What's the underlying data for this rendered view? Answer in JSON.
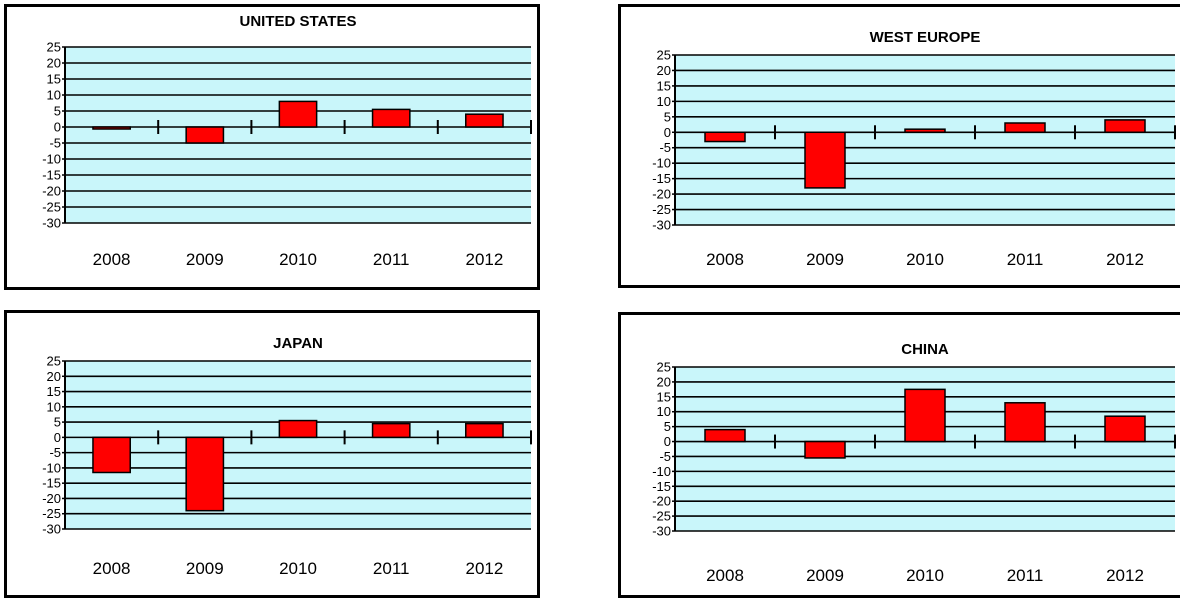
{
  "chart_data": [
    {
      "type": "bar",
      "title": "UNITED STATES",
      "categories": [
        "2008",
        "2009",
        "2010",
        "2011",
        "2012"
      ],
      "values": [
        -0.3,
        -5,
        8,
        5.5,
        4
      ],
      "ylim": [
        -30,
        25
      ],
      "yticks": [
        "25",
        "20",
        "15",
        "10",
        "5",
        "0",
        "-5",
        "-10",
        "-15",
        "-20",
        "-25",
        "-30"
      ],
      "grid": true,
      "colors": {
        "plot_bg": "#c9f6fa",
        "bar": "#ff0000"
      }
    },
    {
      "type": "bar",
      "title": "WEST  EUROPE",
      "categories": [
        "2008",
        "2009",
        "2010",
        "2011",
        "2012"
      ],
      "values": [
        -3,
        -18,
        1,
        3,
        4
      ],
      "ylim": [
        -30,
        25
      ],
      "yticks": [
        "25",
        "20",
        "15",
        "10",
        "5",
        "0",
        "-5",
        "-10",
        "-15",
        "-20",
        "-25",
        "-30"
      ],
      "grid": true,
      "colors": {
        "plot_bg": "#c9f6fa",
        "bar": "#ff0000"
      }
    },
    {
      "type": "bar",
      "title": "JAPAN",
      "categories": [
        "2008",
        "2009",
        "2010",
        "2011",
        "2012"
      ],
      "values": [
        -11.5,
        -24,
        5.5,
        4.5,
        4.5
      ],
      "ylim": [
        -30,
        25
      ],
      "yticks": [
        "25",
        "20",
        "15",
        "10",
        "5",
        "0",
        "-5",
        "-10",
        "-15",
        "-20",
        "-25",
        "-30"
      ],
      "grid": true,
      "colors": {
        "plot_bg": "#c9f6fa",
        "bar": "#ff0000"
      }
    },
    {
      "type": "bar",
      "title": "CHINA",
      "categories": [
        "2008",
        "2009",
        "2010",
        "2011",
        "2012"
      ],
      "values": [
        4,
        -5.5,
        17.5,
        13,
        8.5
      ],
      "ylim": [
        -30,
        25
      ],
      "yticks": [
        "25",
        "20",
        "15",
        "10",
        "5",
        "0",
        "-5",
        "-10",
        "-15",
        "-20",
        "-25",
        "-30"
      ],
      "grid": true,
      "colors": {
        "plot_bg": "#c9f6fa",
        "bar": "#ff0000"
      }
    }
  ]
}
